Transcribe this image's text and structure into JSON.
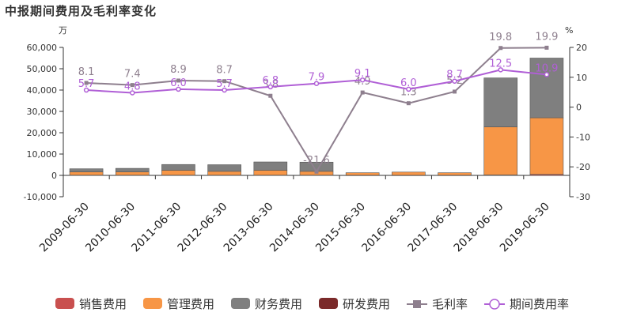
{
  "title": "中报期间费用及毛利率变化",
  "chart_data": {
    "type": "bar",
    "stacked": true,
    "title": "中报期间费用及毛利率变化",
    "y_left_unit": "万",
    "y_right_unit": "%",
    "y_left_lim": [
      -10000,
      60000
    ],
    "y_left_ticks": [
      "-10,000",
      "0",
      "10,000",
      "20,000",
      "30,000",
      "40,000",
      "50,000",
      "60,000"
    ],
    "y_left_tick_values": [
      -10000,
      0,
      10000,
      20000,
      30000,
      40000,
      50000,
      60000
    ],
    "y_right_lim": [
      -30,
      20
    ],
    "y_right_ticks": [
      "-30",
      "-20",
      "-10",
      "0",
      "10",
      "20"
    ],
    "y_right_tick_values": [
      -30,
      -20,
      -10,
      0,
      10,
      20
    ],
    "categories": [
      "2009-06-30",
      "2010-06-30",
      "2011-06-30",
      "2012-06-30",
      "2013-06-30",
      "2014-06-30",
      "2015-06-30",
      "2016-06-30",
      "2017-06-30",
      "2018-06-30",
      "2019-06-30"
    ],
    "bar_series": [
      {
        "name": "销售费用",
        "color": "#c9504f",
        "values": [
          100,
          100,
          100,
          100,
          100,
          100,
          50,
          50,
          50,
          200,
          500
        ]
      },
      {
        "name": "管理费用",
        "color": "#f79646",
        "values": [
          1500,
          1500,
          2300,
          1800,
          2300,
          1800,
          1200,
          1500,
          1200,
          22500,
          26500
        ]
      },
      {
        "name": "财务费用",
        "color": "#7f7f7f",
        "values": [
          1500,
          1700,
          2700,
          3100,
          3900,
          4300,
          0,
          0,
          0,
          23000,
          28000
        ]
      },
      {
        "name": "研发费用",
        "color": "#7b2a2a",
        "values": [
          0,
          0,
          0,
          0,
          0,
          0,
          0,
          0,
          0,
          0,
          0
        ]
      }
    ],
    "line_series": [
      {
        "name": "毛利率",
        "color": "#8e7f8e",
        "marker": "square",
        "values": [
          8.1,
          7.4,
          8.9,
          8.7,
          3.8,
          -21.6,
          4.9,
          1.3,
          5.2,
          19.8,
          19.9
        ],
        "labels": [
          "8.1",
          "7.4",
          "8.9",
          "8.7",
          "3.8",
          "-21.6",
          "4.9",
          "1.3",
          "5.2",
          "19.8",
          "19.9"
        ]
      },
      {
        "name": "期间费用率",
        "color": "#b05fd6",
        "marker": "circle",
        "values": [
          5.7,
          4.8,
          6.0,
          5.7,
          6.8,
          7.9,
          9.1,
          6.0,
          8.7,
          12.5,
          10.9
        ],
        "labels": [
          "5.7",
          "4.8",
          "6.0",
          "5.7",
          "6.8",
          "7.9",
          "9.1",
          "6.0",
          "8.7",
          "12.5",
          "10.9"
        ]
      }
    ],
    "legend_position": "bottom",
    "grid": false
  }
}
